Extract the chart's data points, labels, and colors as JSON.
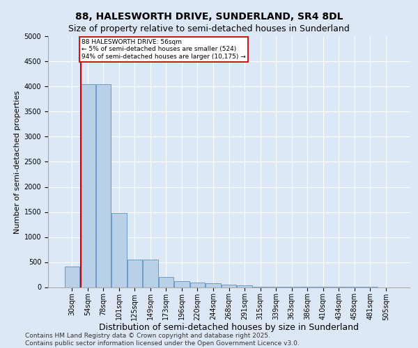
{
  "title1": "88, HALESWORTH DRIVE, SUNDERLAND, SR4 8DL",
  "title2": "Size of property relative to semi-detached houses in Sunderland",
  "xlabel": "Distribution of semi-detached houses by size in Sunderland",
  "ylabel": "Number of semi-detached properties",
  "categories": [
    "30sqm",
    "54sqm",
    "78sqm",
    "101sqm",
    "125sqm",
    "149sqm",
    "173sqm",
    "196sqm",
    "220sqm",
    "244sqm",
    "268sqm",
    "291sqm",
    "315sqm",
    "339sqm",
    "363sqm",
    "386sqm",
    "410sqm",
    "434sqm",
    "458sqm",
    "481sqm",
    "505sqm"
  ],
  "values": [
    410,
    4050,
    4050,
    1480,
    550,
    550,
    195,
    120,
    95,
    75,
    55,
    28,
    7,
    4,
    3,
    2,
    2,
    1,
    1,
    1,
    0
  ],
  "bar_color": "#b8d0e8",
  "bar_edge_color": "#5a90c0",
  "vline_color": "#cc0000",
  "vline_position": 0.575,
  "annotation_text": "88 HALESWORTH DRIVE: 56sqm\n← 5% of semi-detached houses are smaller (524)\n94% of semi-detached houses are larger (10,175) →",
  "annotation_box_facecolor": "#ffffff",
  "annotation_box_edgecolor": "#cc0000",
  "ylim": [
    0,
    5000
  ],
  "yticks": [
    0,
    500,
    1000,
    1500,
    2000,
    2500,
    3000,
    3500,
    4000,
    4500,
    5000
  ],
  "bg_color": "#dce8f5",
  "plot_bg_color": "#dce8f5",
  "title1_fontsize": 10,
  "title2_fontsize": 9,
  "tick_fontsize": 7,
  "ylabel_fontsize": 8,
  "xlabel_fontsize": 9,
  "footer1": "Contains HM Land Registry data © Crown copyright and database right 2025.",
  "footer2": "Contains public sector information licensed under the Open Government Licence v3.0.",
  "footer_fontsize": 6.5
}
